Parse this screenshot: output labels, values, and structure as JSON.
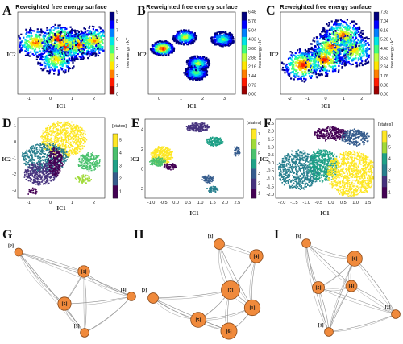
{
  "panels": {
    "A": {
      "letter": "A",
      "title": "Reweighted free energy surface",
      "xlabel": "IC1",
      "ylabel": "IC2",
      "cbar_label": "free energy / kT",
      "cbar_ticks": [
        "0",
        "1",
        "2",
        "3",
        "4",
        "5",
        "6",
        "7",
        "8",
        "9"
      ],
      "xticks": [
        "-1",
        "0",
        "1",
        "2"
      ],
      "yticks": []
    },
    "B": {
      "letter": "B",
      "title": "Reweighted free energy surface",
      "xlabel": "IC1",
      "ylabel": "IC2",
      "cbar_label": "free energy / kT",
      "cbar_ticks": [
        "0.00",
        "0.72",
        "1.44",
        "2.16",
        "2.88",
        "3.60",
        "4.32",
        "5.04",
        "5.76",
        "6.48"
      ],
      "xticks": [
        "0",
        "1",
        "2",
        "3"
      ],
      "yticks": []
    },
    "C": {
      "letter": "C",
      "title": "Reweighted free energy surface",
      "xlabel": "IC1",
      "ylabel": "IC2",
      "cbar_label": "free energy / kT",
      "cbar_ticks": [
        "0.00",
        "0.88",
        "1.76",
        "2.64",
        "3.52",
        "4.40",
        "5.28",
        "6.16",
        "7.04",
        "7.92"
      ],
      "xticks": [
        "-2",
        "-1",
        "0",
        "1",
        "2"
      ],
      "yticks": []
    },
    "D": {
      "letter": "D",
      "title": "",
      "xlabel": "IC1",
      "ylabel": "IC2",
      "cbar_label": "[states]",
      "cbar_ticks": [
        "1",
        "2",
        "3",
        "4",
        "5"
      ],
      "xticks": [
        "-1",
        "0",
        "1",
        "2"
      ],
      "yticks": [
        "-3",
        "-2",
        "-1",
        "0",
        "1"
      ]
    },
    "E": {
      "letter": "E",
      "title": "",
      "xlabel": "IC1",
      "ylabel": "IC2",
      "cbar_label": "[states]",
      "cbar_ticks": [
        "1",
        "2",
        "3",
        "4",
        "5",
        "6",
        "7"
      ],
      "xticks": [
        "-1.0",
        "-0.5",
        "0.0",
        "0.5",
        "1.0",
        "1.5",
        "2.0",
        "2.5"
      ],
      "yticks": [
        "-2",
        "0",
        "2",
        "4"
      ]
    },
    "F": {
      "letter": "F",
      "title": "",
      "xlabel": "IC1",
      "ylabel": "IC2",
      "cbar_label": "[states]",
      "cbar_ticks": [
        "1",
        "2",
        "3",
        "4",
        "5",
        "6"
      ],
      "xticks": [
        "-2.0",
        "-1.5",
        "-1.0",
        "-0.5",
        "0.0",
        "0.5",
        "1.0",
        "1.5"
      ],
      "yticks": [
        "-2.0",
        "-1.5",
        "-1.0",
        "-0.5",
        "0.0",
        "0.5",
        "1.0",
        "1.5",
        "2.0",
        "2.5"
      ]
    },
    "G": {
      "letter": "G"
    },
    "H": {
      "letter": "H"
    },
    "I": {
      "letter": "I"
    }
  },
  "colors": {
    "jet": [
      "#00007f",
      "#0000ff",
      "#007fff",
      "#00e5e5",
      "#3fff7f",
      "#bfff3f",
      "#ffe500",
      "#ff7f00",
      "#ff1a00",
      "#9f0000"
    ],
    "viridis": [
      "#440154",
      "#46327e",
      "#365c8d",
      "#277f8e",
      "#1fa187",
      "#4ac16d",
      "#a0da39",
      "#fde725"
    ],
    "node_fill": "#f08a3c",
    "node_stroke": "#8a4a1a",
    "edge": "#8c8c8c"
  },
  "chart_data": [
    {
      "panel": "A",
      "type": "heatmap",
      "title": "Reweighted free energy surface",
      "xlabel": "IC1",
      "ylabel": "IC2",
      "zlabel": "free energy / kT",
      "zlim": [
        0,
        9
      ],
      "xlim": [
        -1.8,
        2.8
      ],
      "minima": [
        {
          "x": -0.9,
          "y": 0.6,
          "z": 1.5
        },
        {
          "x": 0.3,
          "y": 0.8,
          "z": 0.5
        },
        {
          "x": 0.7,
          "y": 0.4,
          "z": 1.0
        },
        {
          "x": 1.4,
          "y": 0.5,
          "z": 1.5
        },
        {
          "x": 2.2,
          "y": 0.7,
          "z": 2.0
        },
        {
          "x": 0.2,
          "y": -0.3,
          "z": 2.5
        }
      ]
    },
    {
      "panel": "B",
      "type": "heatmap",
      "title": "Reweighted free energy surface",
      "xlabel": "IC1",
      "ylabel": "IC2",
      "zlabel": "free energy / kT",
      "zlim": [
        0,
        6.48
      ],
      "xlim": [
        -0.6,
        3.3
      ],
      "minima": [
        {
          "x": 0.0,
          "y": 0.3,
          "z": 0.2
        },
        {
          "x": 1.0,
          "y": 0.9,
          "z": 2.0
        },
        {
          "x": 1.6,
          "y": -0.5,
          "z": 2.5
        },
        {
          "x": 1.5,
          "y": -1.0,
          "z": 2.8
        },
        {
          "x": 2.7,
          "y": 0.8,
          "z": 3.0
        }
      ]
    },
    {
      "panel": "C",
      "type": "heatmap",
      "title": "Reweighted free energy surface",
      "xlabel": "IC1",
      "ylabel": "IC2",
      "zlabel": "free energy / kT",
      "zlim": [
        0,
        7.92
      ],
      "xlim": [
        -2.4,
        2.6
      ],
      "minima": [
        {
          "x": -1.2,
          "y": -0.6,
          "z": 0.5
        },
        {
          "x": 0.0,
          "y": -0.3,
          "z": 0.8
        },
        {
          "x": 0.4,
          "y": 0.4,
          "z": 1.2
        },
        {
          "x": 1.0,
          "y": 1.0,
          "z": 1.5
        },
        {
          "x": 1.6,
          "y": 0.2,
          "z": 2.0
        }
      ]
    },
    {
      "panel": "D",
      "type": "scatter",
      "xlabel": "IC1",
      "ylabel": "IC2",
      "zlabel": "[states]",
      "zlim": [
        1,
        5
      ],
      "xlim": [
        -1.6,
        2.6
      ],
      "ylim": [
        -3.6,
        1.8
      ]
    },
    {
      "panel": "E",
      "type": "scatter",
      "xlabel": "IC1",
      "ylabel": "IC2",
      "zlabel": "[states]",
      "zlim": [
        1,
        7
      ],
      "xlim": [
        -1.0,
        2.9
      ],
      "ylim": [
        -3.2,
        5.2
      ]
    },
    {
      "panel": "F",
      "type": "scatter",
      "xlabel": "IC1",
      "ylabel": "IC2",
      "zlabel": "[states]",
      "zlim": [
        1,
        6
      ],
      "xlim": [
        -2.1,
        1.8
      ],
      "ylim": [
        -2.1,
        2.6
      ]
    },
    {
      "panel": "G",
      "type": "network",
      "nodes": [
        {
          "label": "[1]",
          "size": 10
        },
        {
          "label": "[2]",
          "size": 3
        },
        {
          "label": "[3]",
          "size": 4
        },
        {
          "label": "[4]",
          "size": 4
        },
        {
          "label": "[5]",
          "size": 14
        }
      ],
      "edges": [
        [
          "[1]",
          "[2]"
        ],
        [
          "[1]",
          "[3]"
        ],
        [
          "[1]",
          "[4]"
        ],
        [
          "[1]",
          "[5]"
        ],
        [
          "[2]",
          "[5]"
        ],
        [
          "[2]",
          "[3]"
        ],
        [
          "[3]",
          "[5]"
        ],
        [
          "[3]",
          "[4]"
        ],
        [
          "[4]",
          "[5]"
        ],
        [
          "[2]",
          "[4]"
        ]
      ]
    },
    {
      "panel": "H",
      "type": "network",
      "nodes": [
        {
          "label": "[1]",
          "size": 22
        },
        {
          "label": "[2]",
          "size": 7
        },
        {
          "label": "[3]",
          "size": 7
        },
        {
          "label": "[4]",
          "size": 14
        },
        {
          "label": "[5]",
          "size": 20
        },
        {
          "label": "[6]",
          "size": 24
        },
        {
          "label": "[7]",
          "size": 34
        }
      ],
      "edges": [
        [
          "[7]",
          "[1]"
        ],
        [
          "[7]",
          "[5]"
        ],
        [
          "[7]",
          "[6]"
        ],
        [
          "[7]",
          "[4]"
        ],
        [
          "[7]",
          "[3]"
        ],
        [
          "[7]",
          "[2]"
        ],
        [
          "[5]",
          "[6]"
        ],
        [
          "[6]",
          "[1]"
        ],
        [
          "[2]",
          "[5]"
        ],
        [
          "[3]",
          "[4]"
        ],
        [
          "[4]",
          "[1]"
        ],
        [
          "[2]",
          "[6]"
        ],
        [
          "[3]",
          "[1]"
        ],
        [
          "[5]",
          "[1]"
        ]
      ]
    },
    {
      "panel": "I",
      "type": "network",
      "nodes": [
        {
          "label": "[1]",
          "size": 4
        },
        {
          "label": "[2]",
          "size": 4
        },
        {
          "label": "[3]",
          "size": 4
        },
        {
          "label": "[4]",
          "size": 9
        },
        {
          "label": "[5]",
          "size": 11
        },
        {
          "label": "[6]",
          "size": 20
        }
      ],
      "edges": [
        [
          "[6]",
          "[4]"
        ],
        [
          "[6]",
          "[5]"
        ],
        [
          "[6]",
          "[3]"
        ],
        [
          "[6]",
          "[2]"
        ],
        [
          "[6]",
          "[1]"
        ],
        [
          "[5]",
          "[4]"
        ],
        [
          "[5]",
          "[3]"
        ],
        [
          "[5]",
          "[1]"
        ],
        [
          "[4]",
          "[1]"
        ],
        [
          "[4]",
          "[2]"
        ],
        [
          "[3]",
          "[1]"
        ],
        [
          "[3]",
          "[4]"
        ],
        [
          "[5]",
          "[2]"
        ],
        [
          "[1]",
          "[2]"
        ]
      ]
    }
  ]
}
